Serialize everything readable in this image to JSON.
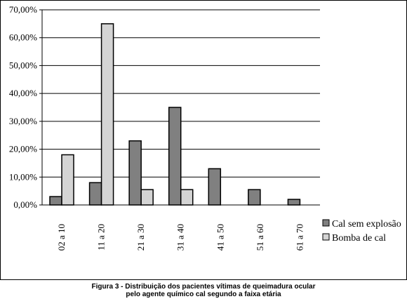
{
  "chart_data": {
    "type": "bar",
    "categories": [
      "02 a 10",
      "11 a 20",
      "21 a 30",
      "31 a 40",
      "41 a 50",
      "51 a 60",
      "61 a 70"
    ],
    "series": [
      {
        "name": "Cal sem explosão",
        "color": "#808080",
        "values": [
          3.0,
          8.0,
          23.0,
          35.0,
          13.0,
          5.5,
          2.0
        ]
      },
      {
        "name": "Bomba de  cal",
        "color": "#d4d4d4",
        "values": [
          18.0,
          65.0,
          null,
          null,
          null,
          null,
          null
        ]
      }
    ],
    "series2_overrides": {
      "2": 5.5,
      "3": 5.5
    },
    "ylim": [
      0,
      70
    ],
    "yticks": [
      "0,00%",
      "10,00%",
      "20,00%",
      "30,00%",
      "40,00%",
      "50,00%",
      "60,00%",
      "70,00%"
    ],
    "grid": true,
    "legend_position": "right",
    "title": "",
    "xlabel": "",
    "ylabel": ""
  },
  "caption": {
    "line1": "Figura 3 - Distribuição dos pacientes vítimas de queimadura ocular",
    "line2": "pelo agente químico cal segundo a faixa etária"
  }
}
